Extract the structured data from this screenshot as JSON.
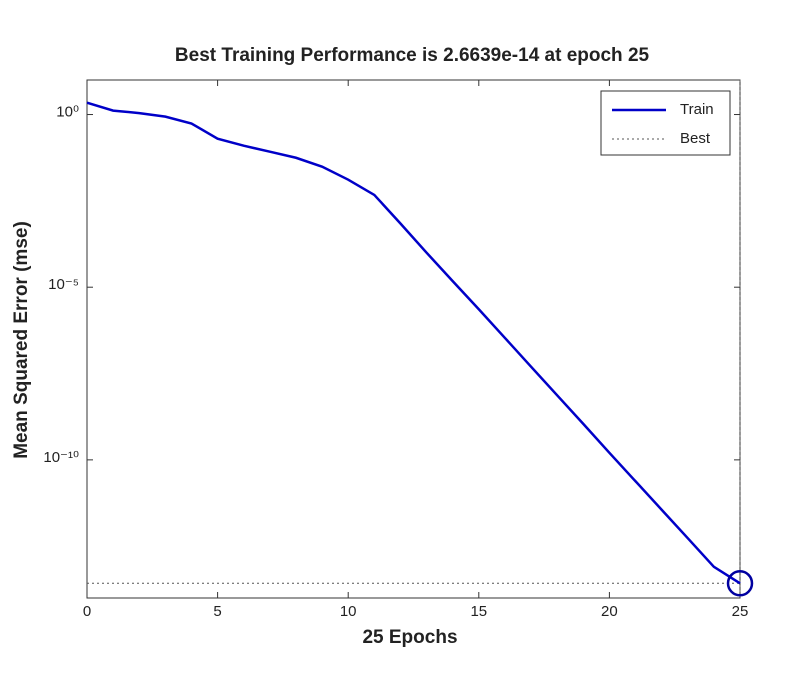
{
  "chart_data": {
    "type": "line",
    "title": "Best Training Performance is 2.6639e-14 at epoch 25",
    "xlabel": "25 Epochs",
    "ylabel": "Mean Squared Error  (mse)",
    "x": [
      0,
      1,
      2,
      3,
      4,
      5,
      6,
      7,
      8,
      9,
      10,
      11,
      12,
      13,
      14,
      15,
      16,
      17,
      18,
      19,
      20,
      21,
      22,
      23,
      24,
      25
    ],
    "series": [
      {
        "name": "Train",
        "color": "#0000c8",
        "values": [
          2.2,
          1.3,
          1.1,
          0.87,
          0.55,
          0.2,
          0.125,
          0.084,
          0.056,
          0.031,
          0.013,
          0.0047,
          0.0007,
          0.0001,
          1.5e-05,
          2.3e-06,
          3.4e-07,
          5e-08,
          7.4e-09,
          1.1e-09,
          1.6e-10,
          2.4e-11,
          3.6e-12,
          5.4e-13,
          8e-14,
          2.6639e-14
        ]
      }
    ],
    "best": {
      "name": "Best",
      "epoch": 25,
      "value": 2.6639e-14,
      "color": "#555555"
    },
    "log_y": true,
    "xlim": [
      0,
      25
    ],
    "xticks": [
      0,
      5,
      10,
      15,
      20,
      25
    ],
    "ylim": [
      1e-14,
      10
    ],
    "yticks": [
      {
        "value": 1,
        "label": "10⁰"
      },
      {
        "value": 1e-05,
        "label": "10⁻⁵"
      },
      {
        "value": 1e-10,
        "label": "10⁻¹⁰"
      }
    ],
    "legend": "upper right"
  }
}
